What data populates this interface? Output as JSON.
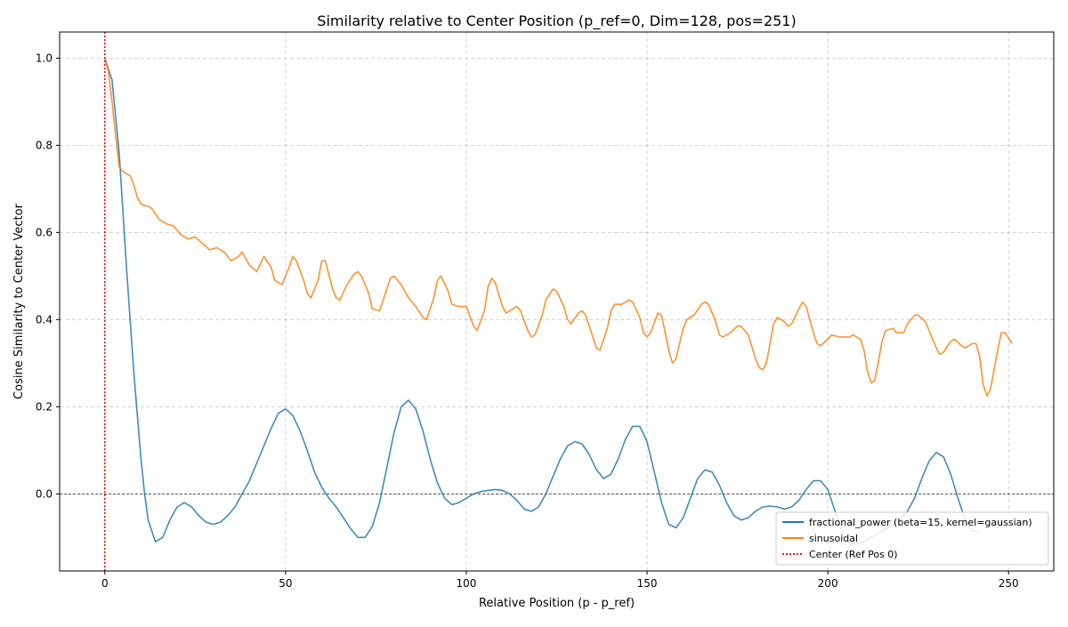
{
  "chart_data": {
    "type": "line",
    "title": "Similarity relative to Center Position (p_ref=0, Dim=128, pos=251)",
    "xlabel": "Relative Position (p - p_ref)",
    "ylabel": "Cosine Similarity to Center Vector",
    "xlim": [
      -12.5,
      262.5
    ],
    "ylim": [
      -0.177,
      1.06
    ],
    "xticks": [
      0,
      50,
      100,
      150,
      200,
      250
    ],
    "yticks": [
      0.0,
      0.2,
      0.4,
      0.6,
      0.8,
      1.0
    ],
    "xtick_labels": [
      "0",
      "50",
      "100",
      "150",
      "200",
      "250"
    ],
    "ytick_labels": [
      "0.0",
      "0.2",
      "0.4",
      "0.6",
      "0.8",
      "1.0"
    ],
    "grid": true,
    "legend_position": "bottom-right",
    "reference_lines": [
      {
        "name": "Center (Ref Pos 0)",
        "orientation": "vertical",
        "value": 0,
        "color": "#e31a1c",
        "style": "dotted"
      },
      {
        "orientation": "horizontal",
        "value": 0,
        "color": "#000000",
        "style": "dashed"
      }
    ],
    "series": [
      {
        "name": "fractional_power (beta=15, kernel=gaussian)",
        "color": "#1f77b4",
        "points": [
          [
            0,
            1.0
          ],
          [
            2,
            0.95
          ],
          [
            4,
            0.78
          ],
          [
            6,
            0.52
          ],
          [
            8,
            0.28
          ],
          [
            10,
            0.08
          ],
          [
            11,
            0.0
          ],
          [
            12,
            -0.06
          ],
          [
            14,
            -0.11
          ],
          [
            16,
            -0.1
          ],
          [
            18,
            -0.06
          ],
          [
            20,
            -0.03
          ],
          [
            22,
            -0.02
          ],
          [
            24,
            -0.03
          ],
          [
            26,
            -0.05
          ],
          [
            28,
            -0.065
          ],
          [
            30,
            -0.07
          ],
          [
            32,
            -0.065
          ],
          [
            34,
            -0.05
          ],
          [
            36,
            -0.03
          ],
          [
            38,
            0.0
          ],
          [
            40,
            0.03
          ],
          [
            42,
            0.07
          ],
          [
            44,
            0.11
          ],
          [
            46,
            0.15
          ],
          [
            48,
            0.185
          ],
          [
            50,
            0.195
          ],
          [
            52,
            0.18
          ],
          [
            54,
            0.145
          ],
          [
            56,
            0.1
          ],
          [
            58,
            0.05
          ],
          [
            60,
            0.015
          ],
          [
            62,
            -0.01
          ],
          [
            64,
            -0.03
          ],
          [
            66,
            -0.055
          ],
          [
            68,
            -0.08
          ],
          [
            70,
            -0.1
          ],
          [
            72,
            -0.1
          ],
          [
            74,
            -0.075
          ],
          [
            76,
            -0.02
          ],
          [
            78,
            0.06
          ],
          [
            80,
            0.14
          ],
          [
            82,
            0.2
          ],
          [
            84,
            0.215
          ],
          [
            86,
            0.195
          ],
          [
            88,
            0.145
          ],
          [
            90,
            0.08
          ],
          [
            92,
            0.025
          ],
          [
            94,
            -0.01
          ],
          [
            96,
            -0.025
          ],
          [
            98,
            -0.02
          ],
          [
            100,
            -0.01
          ],
          [
            102,
            0.0
          ],
          [
            104,
            0.005
          ],
          [
            106,
            0.008
          ],
          [
            108,
            0.01
          ],
          [
            110,
            0.008
          ],
          [
            112,
            0.0
          ],
          [
            114,
            -0.015
          ],
          [
            116,
            -0.035
          ],
          [
            118,
            -0.04
          ],
          [
            120,
            -0.03
          ],
          [
            122,
            0.0
          ],
          [
            124,
            0.04
          ],
          [
            126,
            0.08
          ],
          [
            128,
            0.11
          ],
          [
            130,
            0.12
          ],
          [
            132,
            0.115
          ],
          [
            134,
            0.09
          ],
          [
            136,
            0.055
          ],
          [
            138,
            0.035
          ],
          [
            140,
            0.045
          ],
          [
            142,
            0.08
          ],
          [
            144,
            0.125
          ],
          [
            146,
            0.155
          ],
          [
            148,
            0.155
          ],
          [
            150,
            0.12
          ],
          [
            152,
            0.05
          ],
          [
            154,
            -0.02
          ],
          [
            156,
            -0.07
          ],
          [
            158,
            -0.078
          ],
          [
            160,
            -0.055
          ],
          [
            162,
            -0.01
          ],
          [
            164,
            0.035
          ],
          [
            166,
            0.055
          ],
          [
            168,
            0.05
          ],
          [
            170,
            0.02
          ],
          [
            172,
            -0.02
          ],
          [
            174,
            -0.05
          ],
          [
            176,
            -0.06
          ],
          [
            178,
            -0.055
          ],
          [
            180,
            -0.04
          ],
          [
            182,
            -0.03
          ],
          [
            184,
            -0.028
          ],
          [
            186,
            -0.03
          ],
          [
            188,
            -0.035
          ],
          [
            190,
            -0.03
          ],
          [
            192,
            -0.015
          ],
          [
            194,
            0.01
          ],
          [
            196,
            0.03
          ],
          [
            198,
            0.03
          ],
          [
            200,
            0.01
          ],
          [
            202,
            -0.04
          ],
          [
            204,
            -0.09
          ],
          [
            206,
            -0.115
          ],
          [
            208,
            -0.115
          ],
          [
            210,
            -0.11
          ],
          [
            212,
            -0.1
          ],
          [
            214,
            -0.09
          ],
          [
            216,
            -0.08
          ],
          [
            218,
            -0.07
          ],
          [
            220,
            -0.06
          ],
          [
            222,
            -0.04
          ],
          [
            224,
            -0.01
          ],
          [
            226,
            0.035
          ],
          [
            228,
            0.075
          ],
          [
            230,
            0.095
          ],
          [
            232,
            0.085
          ],
          [
            234,
            0.045
          ],
          [
            236,
            -0.01
          ],
          [
            238,
            -0.06
          ],
          [
            240,
            -0.085
          ],
          [
            242,
            -0.088
          ]
        ]
      },
      {
        "name": "sinusoidal",
        "color": "#ff7f0e",
        "points": [
          [
            0,
            1.0
          ],
          [
            1,
            0.97
          ],
          [
            2,
            0.9
          ],
          [
            3,
            0.82
          ],
          [
            4,
            0.75
          ],
          [
            5,
            0.74
          ],
          [
            7,
            0.73
          ],
          [
            8,
            0.71
          ],
          [
            9,
            0.68
          ],
          [
            10,
            0.665
          ],
          [
            12,
            0.66
          ],
          [
            13,
            0.655
          ],
          [
            15,
            0.63
          ],
          [
            17,
            0.62
          ],
          [
            19,
            0.615
          ],
          [
            21,
            0.595
          ],
          [
            23,
            0.585
          ],
          [
            25,
            0.59
          ],
          [
            27,
            0.575
          ],
          [
            29,
            0.56
          ],
          [
            31,
            0.565
          ],
          [
            33,
            0.555
          ],
          [
            35,
            0.535
          ],
          [
            37,
            0.545
          ],
          [
            38,
            0.555
          ],
          [
            40,
            0.525
          ],
          [
            42,
            0.51
          ],
          [
            44,
            0.545
          ],
          [
            46,
            0.52
          ],
          [
            47,
            0.49
          ],
          [
            49,
            0.48
          ],
          [
            51,
            0.52
          ],
          [
            52,
            0.545
          ],
          [
            53,
            0.535
          ],
          [
            55,
            0.49
          ],
          [
            56,
            0.46
          ],
          [
            57,
            0.45
          ],
          [
            59,
            0.49
          ],
          [
            60,
            0.535
          ],
          [
            61,
            0.535
          ],
          [
            63,
            0.47
          ],
          [
            64,
            0.45
          ],
          [
            65,
            0.445
          ],
          [
            67,
            0.48
          ],
          [
            69,
            0.505
          ],
          [
            70,
            0.51
          ],
          [
            71,
            0.5
          ],
          [
            73,
            0.46
          ],
          [
            74,
            0.425
          ],
          [
            76,
            0.42
          ],
          [
            78,
            0.47
          ],
          [
            79,
            0.495
          ],
          [
            80,
            0.5
          ],
          [
            82,
            0.48
          ],
          [
            84,
            0.45
          ],
          [
            86,
            0.43
          ],
          [
            88,
            0.405
          ],
          [
            89,
            0.4
          ],
          [
            91,
            0.45
          ],
          [
            92,
            0.49
          ],
          [
            93,
            0.5
          ],
          [
            95,
            0.465
          ],
          [
            96,
            0.435
          ],
          [
            98,
            0.43
          ],
          [
            100,
            0.43
          ],
          [
            102,
            0.385
          ],
          [
            103,
            0.375
          ],
          [
            105,
            0.42
          ],
          [
            106,
            0.475
          ],
          [
            107,
            0.495
          ],
          [
            108,
            0.485
          ],
          [
            110,
            0.43
          ],
          [
            111,
            0.415
          ],
          [
            112,
            0.42
          ],
          [
            114,
            0.43
          ],
          [
            115,
            0.42
          ],
          [
            117,
            0.375
          ],
          [
            118,
            0.36
          ],
          [
            119,
            0.365
          ],
          [
            121,
            0.41
          ],
          [
            122,
            0.445
          ],
          [
            124,
            0.47
          ],
          [
            125,
            0.465
          ],
          [
            127,
            0.43
          ],
          [
            128,
            0.4
          ],
          [
            129,
            0.39
          ],
          [
            131,
            0.415
          ],
          [
            132,
            0.42
          ],
          [
            133,
            0.41
          ],
          [
            135,
            0.36
          ],
          [
            136,
            0.335
          ],
          [
            137,
            0.33
          ],
          [
            139,
            0.38
          ],
          [
            140,
            0.42
          ],
          [
            141,
            0.435
          ],
          [
            143,
            0.435
          ],
          [
            145,
            0.445
          ],
          [
            146,
            0.44
          ],
          [
            148,
            0.405
          ],
          [
            149,
            0.37
          ],
          [
            150,
            0.36
          ],
          [
            151,
            0.37
          ],
          [
            153,
            0.415
          ],
          [
            154,
            0.41
          ],
          [
            156,
            0.33
          ],
          [
            157,
            0.3
          ],
          [
            158,
            0.31
          ],
          [
            160,
            0.38
          ],
          [
            161,
            0.4
          ],
          [
            163,
            0.41
          ],
          [
            165,
            0.435
          ],
          [
            166,
            0.44
          ],
          [
            167,
            0.435
          ],
          [
            169,
            0.395
          ],
          [
            170,
            0.365
          ],
          [
            171,
            0.36
          ],
          [
            173,
            0.37
          ],
          [
            175,
            0.385
          ],
          [
            176,
            0.385
          ],
          [
            178,
            0.365
          ],
          [
            180,
            0.31
          ],
          [
            181,
            0.29
          ],
          [
            182,
            0.285
          ],
          [
            183,
            0.3
          ],
          [
            185,
            0.39
          ],
          [
            186,
            0.405
          ],
          [
            188,
            0.395
          ],
          [
            189,
            0.385
          ],
          [
            190,
            0.39
          ],
          [
            192,
            0.425
          ],
          [
            193,
            0.44
          ],
          [
            194,
            0.43
          ],
          [
            196,
            0.37
          ],
          [
            197,
            0.345
          ],
          [
            198,
            0.34
          ],
          [
            200,
            0.355
          ],
          [
            201,
            0.365
          ],
          [
            203,
            0.36
          ],
          [
            205,
            0.36
          ],
          [
            206,
            0.36
          ],
          [
            207,
            0.365
          ],
          [
            209,
            0.355
          ],
          [
            210,
            0.33
          ],
          [
            211,
            0.28
          ],
          [
            212,
            0.255
          ],
          [
            213,
            0.26
          ],
          [
            215,
            0.35
          ],
          [
            216,
            0.375
          ],
          [
            218,
            0.38
          ],
          [
            219,
            0.37
          ],
          [
            221,
            0.37
          ],
          [
            222,
            0.39
          ],
          [
            224,
            0.41
          ],
          [
            225,
            0.41
          ],
          [
            227,
            0.395
          ],
          [
            228,
            0.375
          ],
          [
            230,
            0.335
          ],
          [
            231,
            0.32
          ],
          [
            232,
            0.325
          ],
          [
            234,
            0.35
          ],
          [
            235,
            0.355
          ],
          [
            237,
            0.34
          ],
          [
            238,
            0.335
          ],
          [
            240,
            0.345
          ],
          [
            241,
            0.345
          ],
          [
            242,
            0.315
          ],
          [
            243,
            0.25
          ],
          [
            244,
            0.225
          ],
          [
            245,
            0.24
          ],
          [
            247,
            0.33
          ],
          [
            248,
            0.37
          ],
          [
            249,
            0.37
          ],
          [
            251,
            0.345
          ]
        ]
      }
    ]
  }
}
